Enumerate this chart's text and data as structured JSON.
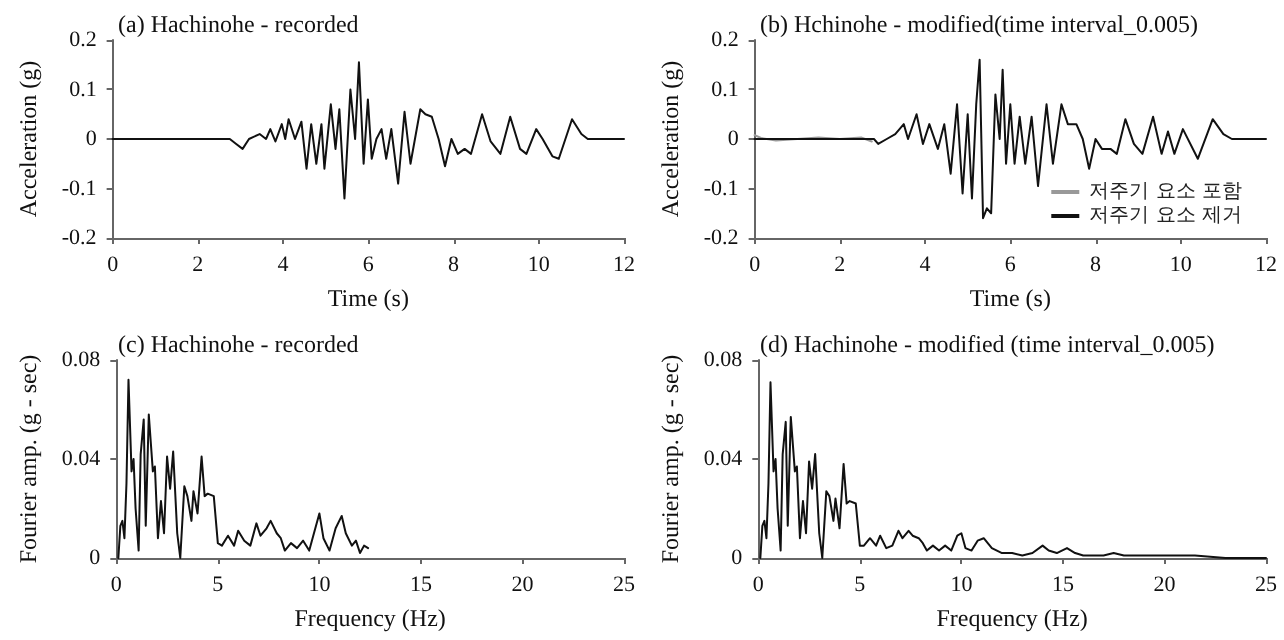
{
  "chart_data": [
    {
      "type": "line",
      "title": "(a) Hachinohe - recorded",
      "xlabel": "Time (s)",
      "ylabel": "Acceleration (g)",
      "xlim": [
        0,
        12
      ],
      "xticks": [
        0,
        2,
        4,
        6,
        8,
        10,
        12
      ],
      "ylim": [
        -0.2,
        0.2
      ],
      "yticks": [
        -0.2,
        -0.1,
        0,
        0.1,
        0.2
      ],
      "grid": false,
      "legend": false,
      "series": [
        {
          "color": "#111111",
          "x": [
            0,
            2.7,
            2.75,
            2.9,
            3.05,
            3.2,
            3.45,
            3.6,
            3.7,
            3.82,
            3.97,
            4.05,
            4.13,
            4.28,
            4.43,
            4.55,
            4.66,
            4.78,
            4.9,
            4.97,
            5.12,
            5.23,
            5.32,
            5.44,
            5.58,
            5.69,
            5.78,
            5.89,
            5.99,
            6.08,
            6.19,
            6.31,
            6.42,
            6.54,
            6.7,
            6.85,
            6.99,
            7.22,
            7.34,
            7.49,
            7.65,
            7.8,
            7.95,
            8.1,
            8.26,
            8.41,
            8.67,
            8.87,
            9.1,
            9.33,
            9.56,
            9.71,
            9.94,
            10.09,
            10.32,
            10.47,
            10.78,
            11.0,
            11.15,
            12
          ],
          "values": [
            0,
            0,
            0,
            -0.01,
            -0.02,
            0,
            0.01,
            0,
            0.02,
            -0.005,
            0.03,
            0,
            0.04,
            0,
            0.035,
            -0.06,
            0.03,
            -0.05,
            0.03,
            -0.06,
            0.07,
            -0.02,
            0.06,
            -0.12,
            0.1,
            0,
            0.155,
            -0.05,
            0.08,
            -0.04,
            0,
            0.02,
            -0.04,
            0.02,
            -0.09,
            0.055,
            -0.05,
            0.06,
            0.05,
            0.045,
            0,
            -0.055,
            0,
            -0.03,
            -0.02,
            -0.03,
            0.05,
            -0.005,
            -0.03,
            0.045,
            -0.02,
            -0.03,
            0.02,
            0,
            -0.035,
            -0.04,
            0.04,
            0.01,
            0,
            0
          ]
        }
      ]
    },
    {
      "type": "line",
      "title": "(b) Hchinohe - modified(time interval_0.005)",
      "xlabel": "Time (s)",
      "ylabel": "Acceleration (g)",
      "xlim": [
        0,
        12
      ],
      "xticks": [
        0,
        2,
        4,
        6,
        8,
        10,
        12
      ],
      "ylim": [
        -0.2,
        0.2
      ],
      "yticks": [
        -0.2,
        -0.1,
        0,
        0.1,
        0.2
      ],
      "grid": false,
      "legend": "bottom right",
      "series": [
        {
          "name": "저주기 요소 포함",
          "color": "#999999",
          "x": [
            0,
            0.15,
            0.5,
            1.0,
            1.5,
            2.0,
            2.5,
            2.75
          ],
          "values": [
            0.008,
            0.002,
            -0.003,
            0,
            0.003,
            0,
            0.003,
            -0.005
          ]
        },
        {
          "name": "저주기 요소 제거",
          "color": "#111111",
          "x": [
            0,
            2.8,
            2.9,
            3.1,
            3.3,
            3.5,
            3.6,
            3.8,
            3.95,
            4.1,
            4.3,
            4.45,
            4.6,
            4.75,
            4.88,
            5.0,
            5.1,
            5.2,
            5.28,
            5.36,
            5.45,
            5.55,
            5.65,
            5.75,
            5.82,
            5.9,
            6.0,
            6.1,
            6.22,
            6.35,
            6.5,
            6.65,
            6.85,
            7.0,
            7.2,
            7.35,
            7.55,
            7.7,
            7.85,
            8.0,
            8.15,
            8.35,
            8.5,
            8.7,
            8.9,
            9.1,
            9.35,
            9.55,
            9.7,
            9.85,
            10.05,
            10.4,
            10.75,
            11.0,
            11.2,
            12
          ],
          "values": [
            0,
            0,
            -0.01,
            0,
            0.01,
            0.03,
            0,
            0.05,
            -0.01,
            0.03,
            -0.02,
            0.03,
            -0.07,
            0.07,
            -0.11,
            0.05,
            -0.12,
            0.07,
            0.16,
            -0.16,
            -0.14,
            -0.15,
            0.09,
            0,
            0.14,
            -0.05,
            0.07,
            -0.05,
            0.045,
            -0.05,
            0.045,
            -0.095,
            0.07,
            -0.05,
            0.07,
            0.03,
            0.03,
            0,
            -0.06,
            0,
            -0.02,
            -0.02,
            -0.03,
            0.04,
            -0.01,
            -0.03,
            0.045,
            -0.03,
            0.015,
            -0.03,
            0.02,
            -0.04,
            0.04,
            0.01,
            0,
            0
          ]
        }
      ]
    },
    {
      "type": "line",
      "title": "(c) Hachinohe - recorded",
      "xlabel": "Frequency (Hz)",
      "ylabel": "Fourier amp. (g - sec)",
      "xlim": [
        0,
        25
      ],
      "xticks": [
        0,
        5,
        10,
        15,
        20,
        25
      ],
      "ylim": [
        0,
        0.08
      ],
      "yticks": [
        0,
        0.04,
        0.08
      ],
      "grid": false,
      "legend": false,
      "series": [
        {
          "color": "#111111",
          "x": [
            0.1,
            0.2,
            0.3,
            0.4,
            0.5,
            0.6,
            0.75,
            0.85,
            0.95,
            1.1,
            1.2,
            1.35,
            1.45,
            1.6,
            1.8,
            1.9,
            2.05,
            2.2,
            2.35,
            2.5,
            2.65,
            2.8,
            3.0,
            3.15,
            3.35,
            3.5,
            3.7,
            3.8,
            4.0,
            4.2,
            4.35,
            4.5,
            4.8,
            5.0,
            5.2,
            5.5,
            5.8,
            6.0,
            6.3,
            6.6,
            6.9,
            7.1,
            7.4,
            7.6,
            7.9,
            8.1,
            8.3,
            8.6,
            8.9,
            9.2,
            9.5,
            9.8,
            10.0,
            10.2,
            10.5,
            10.8,
            11.1,
            11.3,
            11.6,
            11.8,
            12.0,
            12.2,
            12.4
          ],
          "values": [
            0,
            0.013,
            0.015,
            0.008,
            0.03,
            0.072,
            0.035,
            0.04,
            0.02,
            0.003,
            0.042,
            0.056,
            0.013,
            0.058,
            0.035,
            0.037,
            0.008,
            0.023,
            0.01,
            0.041,
            0.028,
            0.043,
            0.01,
            0,
            0.029,
            0.025,
            0.015,
            0.027,
            0.018,
            0.041,
            0.025,
            0.026,
            0.025,
            0.006,
            0.005,
            0.009,
            0.005,
            0.011,
            0.007,
            0.005,
            0.014,
            0.009,
            0.012,
            0.015,
            0.01,
            0.008,
            0.003,
            0.006,
            0.004,
            0.007,
            0.003,
            0.012,
            0.018,
            0.008,
            0.003,
            0.012,
            0.017,
            0.01,
            0.005,
            0.007,
            0.002,
            0.005,
            0.004
          ]
        }
      ]
    },
    {
      "type": "line",
      "title": "(d) Hachinohe - modified (time interval_0.005)",
      "xlabel": "Frequency (Hz)",
      "ylabel": "Fourier amp. (g - sec)",
      "xlim": [
        0,
        25
      ],
      "xticks": [
        0,
        5,
        10,
        15,
        20,
        25
      ],
      "ylim": [
        0,
        0.08
      ],
      "yticks": [
        0,
        0.04,
        0.08
      ],
      "grid": false,
      "legend": false,
      "series": [
        {
          "color": "#111111",
          "x": [
            0.1,
            0.2,
            0.3,
            0.4,
            0.5,
            0.6,
            0.75,
            0.85,
            0.95,
            1.1,
            1.2,
            1.35,
            1.45,
            1.6,
            1.8,
            1.9,
            2.05,
            2.2,
            2.35,
            2.5,
            2.65,
            2.8,
            3.0,
            3.15,
            3.35,
            3.5,
            3.7,
            3.8,
            4.0,
            4.2,
            4.35,
            4.5,
            4.8,
            5.0,
            5.2,
            5.5,
            5.8,
            6.0,
            6.3,
            6.6,
            6.9,
            7.1,
            7.4,
            7.6,
            7.9,
            8.1,
            8.3,
            8.6,
            8.9,
            9.2,
            9.5,
            9.8,
            10.0,
            10.2,
            10.5,
            10.8,
            11.1,
            11.5,
            12,
            12.5,
            13,
            13.5,
            14.0,
            14.3,
            14.7,
            15.2,
            15.6,
            16,
            17,
            17.5,
            18,
            19,
            20,
            20.8,
            21.5,
            23,
            25
          ],
          "values": [
            0,
            0.013,
            0.015,
            0.008,
            0.03,
            0.071,
            0.035,
            0.04,
            0.02,
            0.003,
            0.042,
            0.055,
            0.013,
            0.057,
            0.035,
            0.037,
            0.008,
            0.023,
            0.01,
            0.039,
            0.028,
            0.042,
            0.01,
            0,
            0.027,
            0.025,
            0.015,
            0.024,
            0.012,
            0.038,
            0.022,
            0.023,
            0.022,
            0.005,
            0.005,
            0.008,
            0.005,
            0.009,
            0.004,
            0.005,
            0.011,
            0.008,
            0.011,
            0.009,
            0.008,
            0.006,
            0.003,
            0.005,
            0.003,
            0.005,
            0.003,
            0.009,
            0.01,
            0.004,
            0.003,
            0.007,
            0.008,
            0.004,
            0.002,
            0.002,
            0.001,
            0.002,
            0.005,
            0.003,
            0.002,
            0.004,
            0.002,
            0.001,
            0.001,
            0.002,
            0.001,
            0.001,
            0.001,
            0.001,
            0.001,
            0,
            0
          ]
        }
      ]
    }
  ]
}
